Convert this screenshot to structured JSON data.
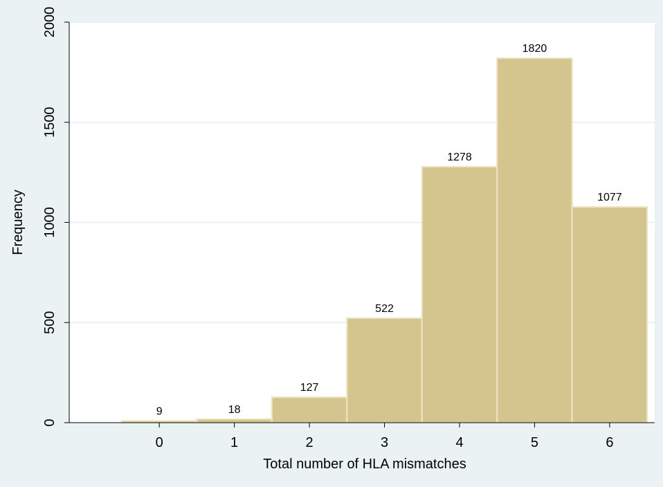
{
  "colors": {
    "background": "#eaf2f3",
    "plot_background": "#ffffff",
    "bar_fill": "#d4c58f",
    "bar_stroke": "#ece4c4",
    "grid": "#e6eeef",
    "axis": "#000000"
  },
  "chart_data": {
    "type": "bar",
    "categories": [
      "0",
      "1",
      "2",
      "3",
      "4",
      "5",
      "6"
    ],
    "values": [
      9,
      18,
      127,
      522,
      1278,
      1820,
      1077
    ],
    "data_labels": [
      "9",
      "18",
      "127",
      "522",
      "1278",
      "1820",
      "1077"
    ],
    "xlabel": "Total number of HLA mismatches",
    "ylabel": "Frequency",
    "ylim": [
      0,
      2000
    ],
    "yticks": [
      0,
      500,
      1000,
      1500,
      2000
    ],
    "ytick_labels": [
      "0",
      "500",
      "1000",
      "1500",
      "2000"
    ],
    "xlim": [
      -1.2,
      6.6
    ],
    "xticks": [
      0,
      1,
      2,
      3,
      4,
      5,
      6
    ],
    "xtick_labels": [
      "0",
      "1",
      "2",
      "3",
      "4",
      "5",
      "6"
    ],
    "bar_width": 1,
    "grid": true,
    "legend": "none"
  }
}
